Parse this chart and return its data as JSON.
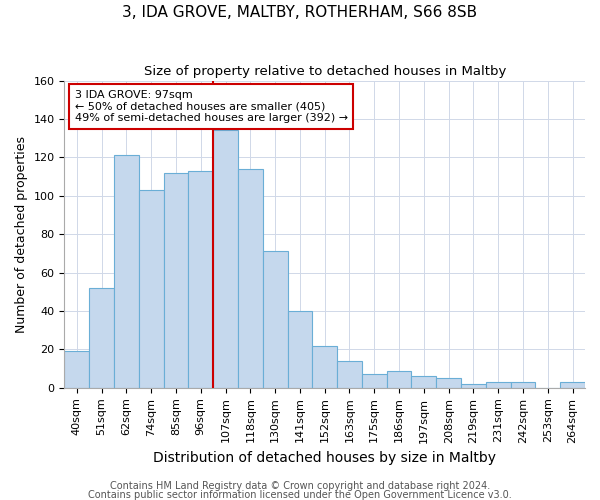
{
  "title": "3, IDA GROVE, MALTBY, ROTHERHAM, S66 8SB",
  "subtitle": "Size of property relative to detached houses in Maltby",
  "xlabel": "Distribution of detached houses by size in Maltby",
  "ylabel": "Number of detached properties",
  "bin_labels": [
    "40sqm",
    "51sqm",
    "62sqm",
    "74sqm",
    "85sqm",
    "96sqm",
    "107sqm",
    "118sqm",
    "130sqm",
    "141sqm",
    "152sqm",
    "163sqm",
    "175sqm",
    "186sqm",
    "197sqm",
    "208sqm",
    "219sqm",
    "231sqm",
    "242sqm",
    "253sqm",
    "264sqm"
  ],
  "bar_heights": [
    19,
    52,
    121,
    103,
    112,
    113,
    134,
    114,
    71,
    40,
    22,
    14,
    7,
    9,
    6,
    5,
    2,
    3,
    3,
    0,
    3
  ],
  "bar_color": "#c5d8ed",
  "bar_edge_color": "#6aaed6",
  "vline_color": "#cc0000",
  "annotation_text": "3 IDA GROVE: 97sqm\n← 50% of detached houses are smaller (405)\n49% of semi-detached houses are larger (392) →",
  "annotation_box_color": "#ffffff",
  "annotation_box_edge": "#cc0000",
  "ylim": [
    0,
    160
  ],
  "yticks": [
    0,
    20,
    40,
    60,
    80,
    100,
    120,
    140,
    160
  ],
  "footer1": "Contains HM Land Registry data © Crown copyright and database right 2024.",
  "footer2": "Contains public sector information licensed under the Open Government Licence v3.0.",
  "background_color": "#ffffff",
  "grid_color": "#d0d8e8",
  "title_fontsize": 11,
  "subtitle_fontsize": 9.5,
  "xlabel_fontsize": 10,
  "ylabel_fontsize": 9,
  "tick_fontsize": 8,
  "annotation_fontsize": 8,
  "footer_fontsize": 7
}
